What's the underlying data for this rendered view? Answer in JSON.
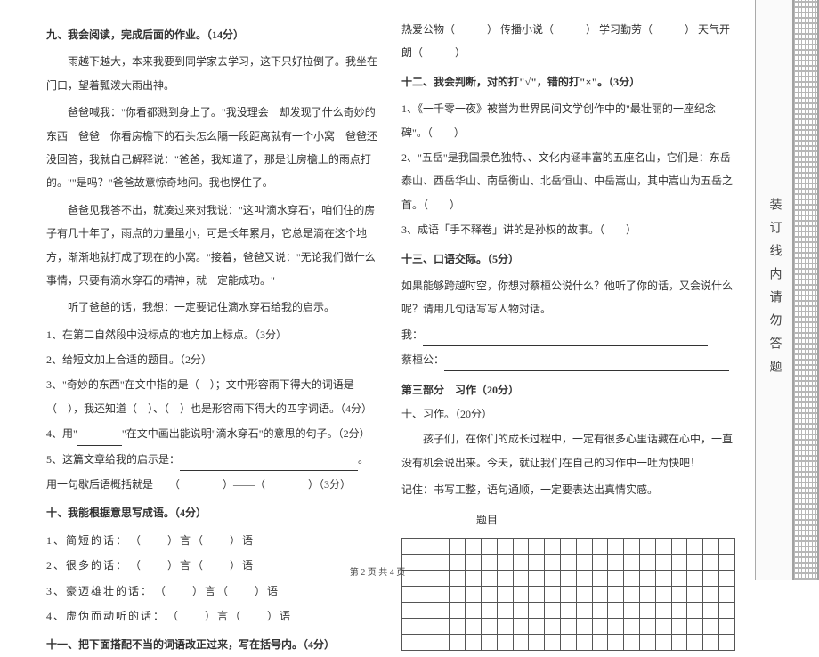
{
  "left": {
    "s9_title": "九、我会阅读，完成后面的作业。（14分）",
    "p1": "雨越下越大，本来我要到同学家去学习，这下只好拉倒了。我坐在门口，望着瓢泼大雨出神。",
    "p2": "爸爸喊我：\"你看都溅到身上了。\"我没理会　却发现了什么奇妙的东西　爸爸　你看房檐下的石头怎么隔一段距离就有一个小窝　爸爸还没回答，我就自己解释说：\"爸爸，我知道了，那是让房檐上的雨点打的。\"\"是吗？\"爸爸故意惊奇地问。我也愣住了。",
    "p3": "爸爸见我答不出，就凑过来对我说：\"这叫'滴水穿石'，咱们住的房子有几十年了，雨点的力量虽小，可是长年累月，它总是滴在这个地方，渐渐地就打成了现在的小窝。\"接着，爸爸又说：\"无论我们做什么事情，只要有滴水穿石的精神，就一定能成功。\"",
    "p4": "听了爸爸的话，我想：一定要记住滴水穿石给我的启示。",
    "q1": "1、在第二自然段中没标点的地方加上标点。（3分）",
    "q2": "2、给短文加上合适的题目。（2分）",
    "q3": "3、\"奇妙的东西\"在文中指的是（　）；文中形容雨下得大的词语是（　），我还知道（　）、（　）也是形容雨下得大的四字词语。（4分）",
    "q4a": "4、用\"",
    "q4b": "\"在文中画出能说明\"滴水穿石\"的意思的句子。（2分）",
    "q5": "5、这篇文章给我的启示是：",
    "q5b": "。",
    "q6": "用一句歇后语概括就是　　（　　　　）——（　　　　）（3分）",
    "s10_title": "十、我能根据意思写成语。（4分）",
    "s10_1": "1、简短的话：　（　　）言（　　）语",
    "s10_2": "2、很多的话：　（　　）言（　　）语",
    "s10_3": "3、豪迈雄壮的话：　（　　）言（　　）语",
    "s10_4": "4、虚伪而动听的话：　（　　）言（　　）语",
    "s11_title": "十一、把下面搭配不当的词语改正过来，写在括号内。（4分）"
  },
  "right": {
    "s11_row": [
      "热爱公物（　　　）",
      "传播小说（　　　）",
      "学习勤劳（　　　）",
      "天气开朗（　　　）"
    ],
    "s12_title": "十二、我会判断，对的打\"√\"，错的打\"×\"。（3分）",
    "s12_1": "1、《一千零一夜》被誉为世界民间文学创作中的\"最壮丽的一座纪念碑\"。（　　）",
    "s12_2": "2、\"五岳\"是我国景色独特、、文化内涵丰富的五座名山，它们是：东岳泰山、西岳华山、南岳衡山、北岳恒山、中岳嵩山，其中嵩山为五岳之首。（　　）",
    "s12_3": "3、成语「手不释卷」讲的是孙权的故事。（　　）",
    "s13_title": "十三、口语交际。（5分）",
    "s13_body": "如果能够跨越时空，你想对蔡桓公说什么？他听了你的话，又会说什么呢？请用几句话写写人物对话。",
    "s13_me": "我：",
    "s13_cai": "蔡桓公：",
    "part3": "第三部分　习作（20分）",
    "s14_title": "十、习作。（20分）",
    "s14_p1": "孩子们，在你们的成长过程中，一定有很多心里话藏在心中，一直没有机会说出来。今天，就让我们在自己的习作中一吐为快吧！",
    "s14_p2": "记住：书写工整，语句通顺，一定要表达出真情实感。",
    "s14_label": "题目"
  },
  "footer": "第 2 页  共 4 页",
  "binding_chars": "装订线内请勿答题",
  "grid": {
    "rows": 7,
    "cols": 21
  }
}
